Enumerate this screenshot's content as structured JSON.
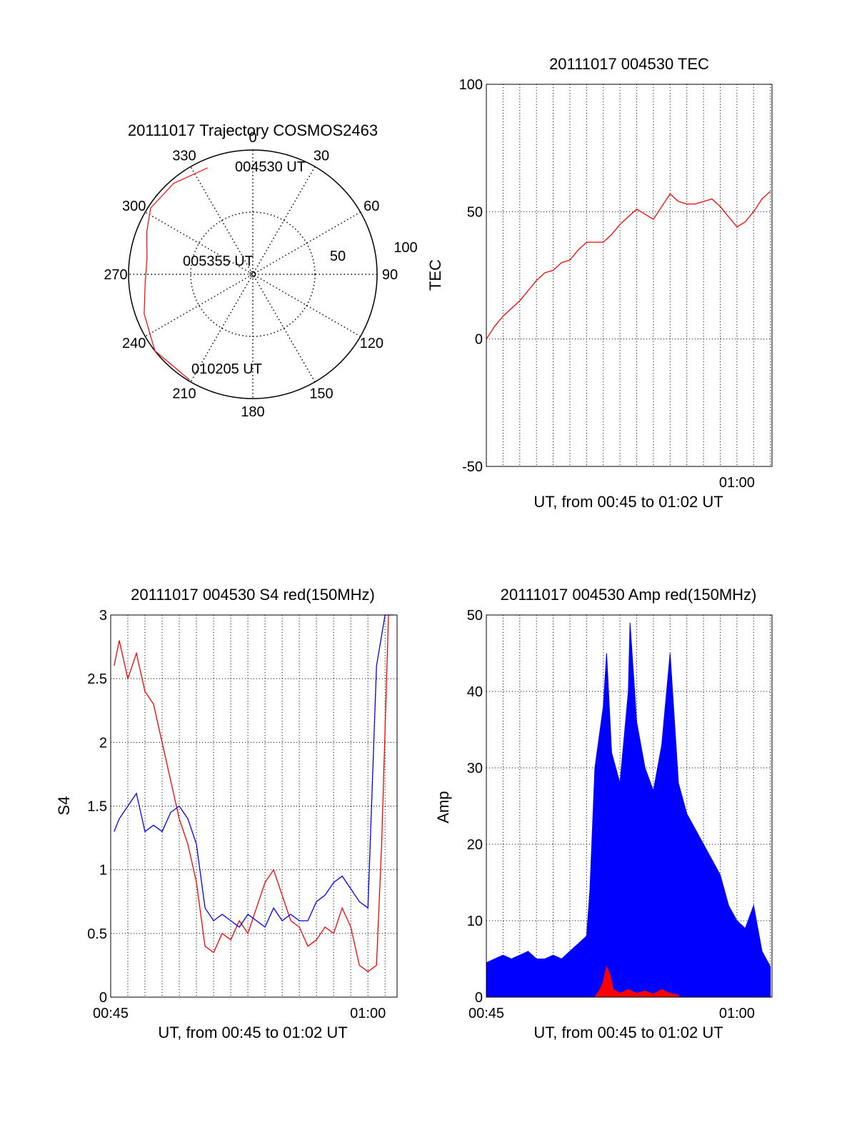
{
  "colors": {
    "red": "#ff0000",
    "blue": "#0000ff",
    "axis": "#000000",
    "grid": "#000000"
  },
  "chart_data": [
    {
      "type": "polar",
      "title": "20111017 Trajectory COSMOS2463",
      "angle_labels": [
        "0",
        "30",
        "60",
        "90",
        "120",
        "150",
        "180",
        "210",
        "240",
        "270",
        "300",
        "330"
      ],
      "radial_labels": [
        "50",
        "100"
      ],
      "grid": true,
      "series": [
        {
          "color": "#ff0000",
          "points": [
            {
              "azimuth": 337,
              "zenith": 93
            },
            {
              "azimuth": 319,
              "zenith": 97
            },
            {
              "azimuth": 303,
              "zenith": 98
            },
            {
              "azimuth": 292,
              "zenith": 92
            },
            {
              "azimuth": 278,
              "zenith": 86
            },
            {
              "azimuth": 265,
              "zenith": 87
            },
            {
              "azimuth": 250,
              "zenith": 93
            },
            {
              "azimuth": 232,
              "zenith": 100
            },
            {
              "azimuth": 211,
              "zenith": 99
            }
          ]
        }
      ],
      "annotations": [
        "004530 UT",
        "005355 UT",
        "010205 UT"
      ]
    },
    {
      "type": "line",
      "title": "20111017 004530 TEC",
      "xlabel": "UT, from 00:45 to 01:02 UT",
      "ylabel": "TEC",
      "xlim": [
        0,
        17.1
      ],
      "ylim": [
        -50,
        100
      ],
      "yticks": [
        -50,
        0,
        50,
        100
      ],
      "xtick_labels": [
        "01:00"
      ],
      "grid": true,
      "series": [
        {
          "color": "#ff0000",
          "x": [
            0.0,
            0.5,
            1.0,
            1.5,
            2.0,
            2.5,
            3.0,
            3.5,
            4.0,
            4.5,
            5.0,
            5.5,
            6.0,
            6.5,
            7.0,
            7.5,
            8.0,
            8.5,
            9.0,
            9.5,
            10.0,
            10.5,
            11.0,
            11.5,
            12.0,
            12.5,
            13.0,
            13.5,
            14.0,
            14.5,
            15.0,
            15.5,
            16.0,
            16.5,
            17.0
          ],
          "y": [
            0,
            5,
            9,
            12,
            15,
            19,
            23,
            26,
            27,
            30,
            31,
            35,
            38,
            38,
            38,
            41,
            45,
            48,
            51,
            49,
            47,
            52,
            57,
            54,
            53,
            53,
            54,
            55,
            52,
            48,
            44,
            46,
            50,
            55,
            58
          ]
        }
      ]
    },
    {
      "type": "line",
      "title": "20111017 004530 S4 red(150MHz)",
      "xlabel": "UT, from 00:45 to 01:02 UT",
      "ylabel": "S4",
      "xlim": [
        0,
        16.7
      ],
      "ylim": [
        0,
        3
      ],
      "yticks": [
        0,
        0.5,
        1,
        1.5,
        2,
        2.5,
        3
      ],
      "ytick_labels": [
        "0",
        "0.5",
        "1",
        "1.5",
        "2",
        "2.5",
        "3"
      ],
      "xtick_labels": [
        "00:45",
        "01:00"
      ],
      "grid": true,
      "series": [
        {
          "color": "#ff0000",
          "x": [
            0.2,
            0.5,
            1.0,
            1.5,
            2.0,
            2.5,
            3.0,
            3.5,
            4.0,
            4.5,
            5.0,
            5.5,
            6.0,
            6.5,
            7.0,
            7.5,
            8.0,
            8.5,
            9.0,
            9.5,
            10.0,
            10.5,
            11.0,
            11.5,
            12.0,
            12.5,
            13.0,
            13.5,
            14.0,
            14.5,
            15.0,
            15.5,
            15.8,
            16.2
          ],
          "y": [
            2.6,
            2.8,
            2.5,
            2.7,
            2.4,
            2.3,
            2.0,
            1.7,
            1.4,
            1.2,
            0.9,
            0.4,
            0.35,
            0.5,
            0.45,
            0.6,
            0.5,
            0.7,
            0.9,
            1.0,
            0.8,
            0.6,
            0.55,
            0.4,
            0.45,
            0.55,
            0.5,
            0.7,
            0.55,
            0.25,
            0.2,
            0.25,
            1.2,
            3.0
          ]
        },
        {
          "color": "#0000ff",
          "x": [
            0.2,
            0.5,
            1.0,
            1.5,
            2.0,
            2.5,
            3.0,
            3.5,
            4.0,
            4.5,
            5.0,
            5.5,
            6.0,
            6.5,
            7.0,
            7.5,
            8.0,
            8.5,
            9.0,
            9.5,
            10.0,
            10.5,
            11.0,
            11.5,
            12.0,
            12.5,
            13.0,
            13.5,
            14.0,
            14.5,
            15.0,
            15.5,
            16.0,
            16.5
          ],
          "y": [
            1.3,
            1.4,
            1.5,
            1.6,
            1.3,
            1.35,
            1.3,
            1.45,
            1.5,
            1.4,
            1.2,
            0.7,
            0.6,
            0.65,
            0.6,
            0.55,
            0.65,
            0.6,
            0.55,
            0.7,
            0.6,
            0.65,
            0.6,
            0.6,
            0.75,
            0.8,
            0.9,
            0.95,
            0.85,
            0.75,
            0.7,
            2.6,
            3.0,
            3.0
          ]
        }
      ]
    },
    {
      "type": "line",
      "title": "20111017 004530 Amp red(150MHz)",
      "xlabel": "UT, from 00:45 to 01:02 UT",
      "ylabel": "Amp",
      "xlim": [
        0,
        17.1
      ],
      "ylim": [
        0,
        50
      ],
      "yticks": [
        0,
        10,
        20,
        30,
        40,
        50
      ],
      "xtick_labels": [
        "00:45",
        "01:00"
      ],
      "grid": true,
      "series": [
        {
          "color": "#0000ff",
          "x": [
            0.0,
            0.5,
            1.0,
            1.5,
            2.0,
            2.5,
            3.0,
            3.5,
            4.0,
            4.5,
            5.0,
            5.5,
            6.0,
            6.2,
            6.5,
            7.0,
            7.2,
            7.5,
            8.0,
            8.5,
            8.6,
            9.0,
            9.5,
            10.0,
            10.5,
            11.0,
            11.5,
            12.0,
            12.5,
            13.0,
            13.5,
            14.0,
            14.5,
            15.0,
            15.5,
            16.0,
            16.5,
            17.0
          ],
          "y": [
            4.5,
            5,
            5.5,
            5,
            5.5,
            6,
            5,
            5,
            5.5,
            5,
            6,
            7,
            8,
            14,
            30,
            38,
            45,
            32,
            28,
            40,
            49,
            36,
            30,
            27,
            33,
            45,
            28,
            24,
            22,
            20,
            18,
            16,
            12,
            10,
            9,
            12,
            6,
            4
          ]
        },
        {
          "color": "#ff0000",
          "x": [
            6.5,
            6.8,
            7.0,
            7.2,
            7.4,
            7.6,
            8.0,
            8.5,
            9.0,
            9.5,
            10.0,
            10.5,
            11.0,
            11.5
          ],
          "y": [
            0,
            1,
            2,
            4,
            3,
            1,
            0.5,
            1,
            0.5,
            0.8,
            0.4,
            1,
            0.5,
            0.3
          ]
        }
      ]
    }
  ]
}
